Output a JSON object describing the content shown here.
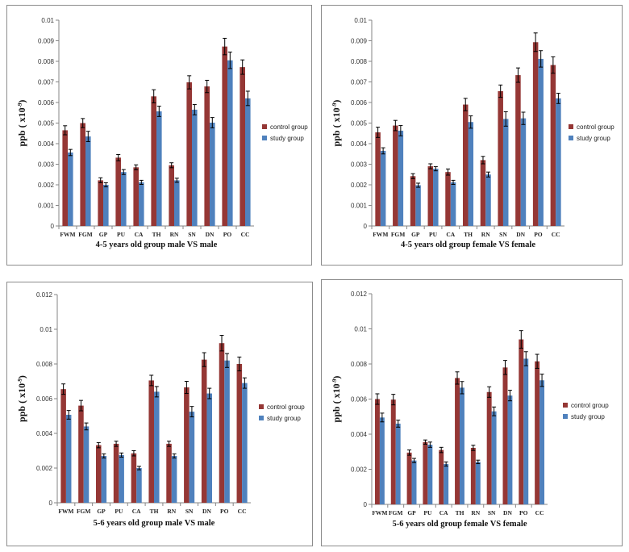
{
  "colors": {
    "control": "#953735",
    "study": "#4f81bd",
    "error_bar": "#000000",
    "axis": "#868686"
  },
  "chart_data": [
    {
      "type": "bar",
      "title": "4-5 years old group   male VS male",
      "ylabel": "ppb ( x10",
      "ylabel_sup": "-9",
      "ylabel_end": ")",
      "ylim": [
        0,
        0.01
      ],
      "yticks": [
        "0",
        "0.001",
        "0.002",
        "0.003",
        "0.004",
        "0.005",
        "0.006",
        "0.007",
        "0.008",
        "0.009",
        "0.01"
      ],
      "categories": [
        "FWM",
        "FGM",
        "GP",
        "PU",
        "CA",
        "TH",
        "RN",
        "SN",
        "DN",
        "PO",
        "CC"
      ],
      "legend_position": "right",
      "grid": false,
      "series": [
        {
          "name": "control group",
          "values": [
            0.00465,
            0.005,
            0.00222,
            0.00332,
            0.00285,
            0.0063,
            0.00295,
            0.00698,
            0.00678,
            0.00872,
            0.00772
          ],
          "errors": [
            0.00022,
            0.00022,
            0.00012,
            0.00015,
            0.00012,
            0.00032,
            0.00012,
            0.00032,
            0.0003,
            0.0004,
            0.00035
          ]
        },
        {
          "name": "study group",
          "values": [
            0.00357,
            0.00435,
            0.002,
            0.00262,
            0.00212,
            0.00557,
            0.00222,
            0.00565,
            0.00502,
            0.00805,
            0.0062
          ],
          "errors": [
            0.00015,
            0.00025,
            0.0001,
            0.00012,
            0.0001,
            0.00025,
            0.0001,
            0.00025,
            0.00025,
            0.0004,
            0.00035
          ]
        }
      ]
    },
    {
      "type": "bar",
      "title": "4-5 years old group   female VS female",
      "ylabel": "ppb ( x10",
      "ylabel_sup": "-9",
      "ylabel_end": ")",
      "ylim": [
        0,
        0.01
      ],
      "yticks": [
        "0",
        "0.001",
        "0.002",
        "0.003",
        "0.004",
        "0.005",
        "0.006",
        "0.007",
        "0.008",
        "0.009",
        "0.01"
      ],
      "categories": [
        "FWM",
        "FGM",
        "GP",
        "PU",
        "CA",
        "TH",
        "RN",
        "SN",
        "DN",
        "PO",
        "CC"
      ],
      "legend_position": "right",
      "grid": false,
      "series": [
        {
          "name": "control group",
          "values": [
            0.00455,
            0.00488,
            0.00242,
            0.0029,
            0.00262,
            0.0059,
            0.0032,
            0.00655,
            0.00733,
            0.00893,
            0.00782
          ],
          "errors": [
            0.00025,
            0.00025,
            0.00012,
            0.00012,
            0.00015,
            0.0003,
            0.00018,
            0.0003,
            0.00035,
            0.00045,
            0.0004
          ]
        },
        {
          "name": "study group",
          "values": [
            0.00365,
            0.00463,
            0.00198,
            0.00278,
            0.00212,
            0.00505,
            0.0025,
            0.0052,
            0.00523,
            0.00812,
            0.0062
          ],
          "errors": [
            0.00015,
            0.00025,
            0.0001,
            0.0001,
            0.0001,
            0.0003,
            0.00012,
            0.00035,
            0.0003,
            0.0004,
            0.00025
          ]
        }
      ]
    },
    {
      "type": "bar",
      "title": "5-6 years old group male VS male",
      "ylabel": "ppb ( x10",
      "ylabel_sup": "-9",
      "ylabel_end": ")",
      "ylim": [
        0,
        0.012
      ],
      "yticks": [
        "0",
        "0.002",
        "0.004",
        "0.006",
        "0.008",
        "0.01",
        "0.012"
      ],
      "categories": [
        "FWM",
        "FGM",
        "GP",
        "PU",
        "CA",
        "TH",
        "RN",
        "SN",
        "DN",
        "PO",
        "CC"
      ],
      "legend_position": "right",
      "grid": false,
      "series": [
        {
          "name": "control group",
          "values": [
            0.00655,
            0.0056,
            0.00332,
            0.0034,
            0.00285,
            0.00705,
            0.0034,
            0.00665,
            0.00825,
            0.0092,
            0.008
          ],
          "errors": [
            0.0003,
            0.0003,
            0.00015,
            0.00015,
            0.00015,
            0.0003,
            0.00015,
            0.00035,
            0.0004,
            0.00045,
            0.0004
          ]
        },
        {
          "name": "study group",
          "values": [
            0.00507,
            0.0044,
            0.0027,
            0.00275,
            0.002,
            0.0064,
            0.0027,
            0.00525,
            0.0063,
            0.0082,
            0.0069
          ],
          "errors": [
            0.00025,
            0.0002,
            0.00012,
            0.00012,
            0.0001,
            0.0003,
            0.00012,
            0.0003,
            0.0003,
            0.0004,
            0.0003
          ]
        }
      ]
    },
    {
      "type": "bar",
      "title": "5-6 years old group female VS female",
      "ylabel": "ppb ( x10",
      "ylabel_sup": "-9",
      "ylabel_end": ")",
      "ylim": [
        0,
        0.012
      ],
      "yticks": [
        "0",
        "0.002",
        "0.004",
        "0.006",
        "0.008",
        "0.01",
        "0.012"
      ],
      "categories": [
        "FWM",
        "FGM",
        "GP",
        "PU",
        "CA",
        "TH",
        "RN",
        "SN",
        "DN",
        "PO",
        "CC"
      ],
      "legend_position": "right",
      "grid": false,
      "series": [
        {
          "name": "control group",
          "values": [
            0.006,
            0.00597,
            0.00295,
            0.00355,
            0.0031,
            0.0072,
            0.00322,
            0.0064,
            0.0078,
            0.0094,
            0.00815
          ],
          "errors": [
            0.0003,
            0.0003,
            0.00015,
            0.00012,
            0.00015,
            0.00035,
            0.00015,
            0.0003,
            0.0004,
            0.0005,
            0.0004
          ]
        },
        {
          "name": "study group",
          "values": [
            0.00495,
            0.0046,
            0.0025,
            0.0034,
            0.0023,
            0.00665,
            0.00242,
            0.0053,
            0.0062,
            0.0083,
            0.00707
          ],
          "errors": [
            0.00025,
            0.0002,
            0.00012,
            0.00015,
            0.00012,
            0.00035,
            0.0001,
            0.00025,
            0.0003,
            0.0004,
            0.00035
          ]
        }
      ]
    }
  ]
}
